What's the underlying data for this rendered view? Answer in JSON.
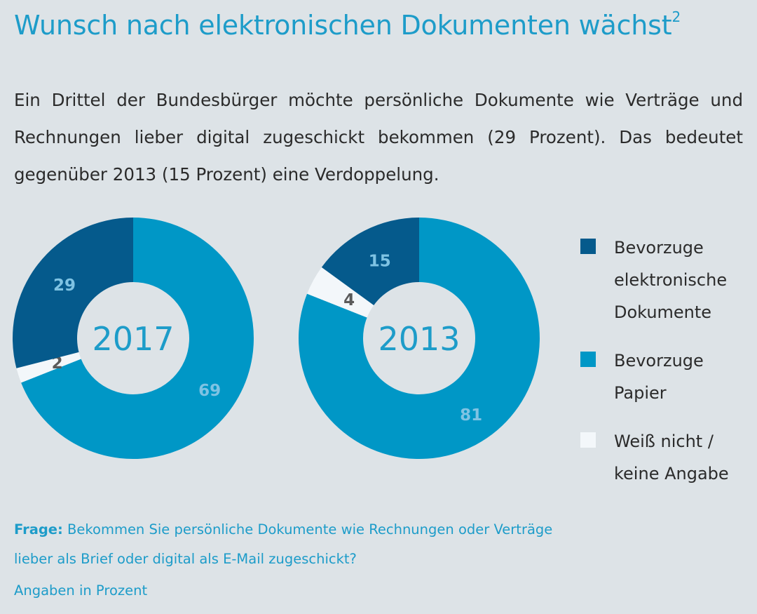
{
  "title": "Wunsch nach elektronischen Dokumenten wächst",
  "title_footnote": "2",
  "intro": "Ein Drittel der Bundesbürger möchte persönliche Dokumente wie Verträge und Rechnungen lieber digital zugeschickt bekommen (29 Prozent). Das bedeutet gegenüber 2013 (15 Prozent) eine Verdoppelung.",
  "legend": [
    {
      "label": "Bevorzuge elektronische Dokumente",
      "color": "#055a8c"
    },
    {
      "label": "Bevorzuge Papier",
      "color": "#0097c6"
    },
    {
      "label": "Weiß nicht / keine Angabe",
      "color": "#f3f7fa"
    }
  ],
  "question_label": "Frage:",
  "question": "Bekommen Sie persönliche Dokumente wie Rechnungen oder Verträge lieber als Brief oder digital als E-Mail zugeschickt?",
  "unit_note": "Angaben in Prozent",
  "chart_data": [
    {
      "type": "pie",
      "center_label": "2017",
      "categories": [
        "Bevorzuge elektronische Dokumente",
        "Bevorzuge Papier",
        "Weiß nicht / keine Angabe"
      ],
      "values": [
        29,
        69,
        2
      ],
      "colors": [
        "#055a8c",
        "#0097c6",
        "#f3f7fa"
      ]
    },
    {
      "type": "pie",
      "center_label": "2013",
      "categories": [
        "Bevorzuge elektronische Dokumente",
        "Bevorzuge Papier",
        "Weiß nicht / keine Angabe"
      ],
      "values": [
        15,
        81,
        4
      ],
      "colors": [
        "#055a8c",
        "#0097c6",
        "#f3f7fa"
      ]
    }
  ]
}
